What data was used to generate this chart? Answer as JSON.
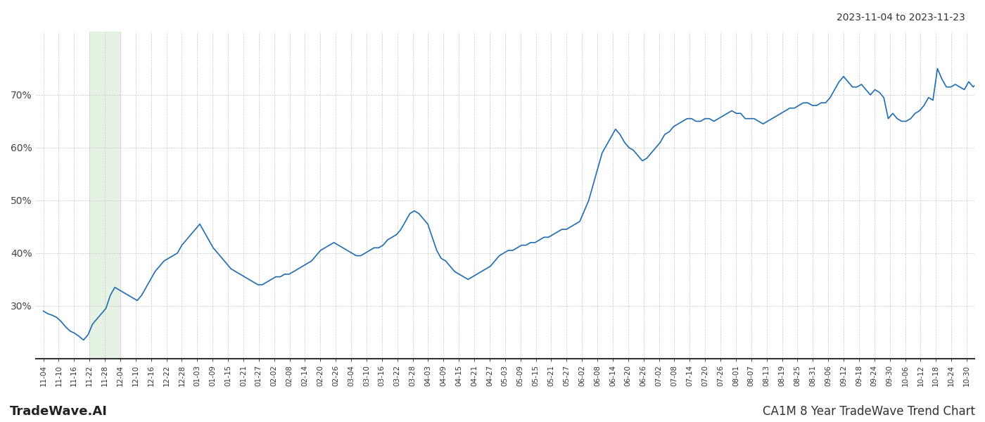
{
  "title_right": "2023-11-04 to 2023-11-23",
  "footer_left": "TradeWave.AI",
  "footer_right": "CA1M 8 Year TradeWave Trend Chart",
  "background_color": "#ffffff",
  "line_color": "#1f6cb0",
  "line_width": 1.2,
  "grid_color": "#c8c8c8",
  "shade_color": "#d6ecd2",
  "shade_alpha": 0.6,
  "ylim": [
    20,
    82
  ],
  "yticks": [
    30,
    40,
    50,
    60,
    70
  ],
  "xtick_labels": [
    "11-04",
    "11-10",
    "11-16",
    "11-22",
    "11-28",
    "12-04",
    "12-10",
    "12-16",
    "12-22",
    "12-28",
    "01-03",
    "01-09",
    "01-15",
    "01-21",
    "01-27",
    "02-02",
    "02-08",
    "02-14",
    "02-20",
    "02-26",
    "03-04",
    "03-10",
    "03-16",
    "03-22",
    "03-28",
    "04-03",
    "04-09",
    "04-15",
    "04-21",
    "04-27",
    "05-03",
    "05-09",
    "05-15",
    "05-21",
    "05-27",
    "06-02",
    "06-08",
    "06-14",
    "06-20",
    "06-26",
    "07-02",
    "07-08",
    "07-14",
    "07-20",
    "07-26",
    "08-01",
    "08-07",
    "08-13",
    "08-19",
    "08-25",
    "08-31",
    "09-06",
    "09-12",
    "09-18",
    "09-24",
    "09-30",
    "10-06",
    "10-12",
    "10-18",
    "10-24",
    "10-30"
  ],
  "values": [
    29.0,
    28.5,
    28.2,
    27.8,
    27.0,
    26.0,
    25.2,
    24.8,
    24.2,
    23.5,
    24.5,
    26.5,
    27.5,
    28.5,
    29.5,
    32.0,
    33.5,
    33.0,
    32.5,
    32.0,
    31.5,
    31.0,
    32.0,
    33.5,
    35.0,
    36.5,
    37.5,
    38.5,
    39.0,
    39.5,
    40.0,
    41.5,
    42.5,
    43.5,
    44.5,
    45.5,
    44.0,
    42.5,
    41.0,
    40.0,
    39.0,
    38.0,
    37.0,
    36.5,
    36.0,
    35.5,
    35.0,
    34.5,
    34.0,
    34.0,
    34.5,
    35.0,
    35.5,
    35.5,
    36.0,
    36.0,
    36.5,
    37.0,
    37.5,
    38.0,
    38.5,
    39.5,
    40.5,
    41.0,
    41.5,
    42.0,
    41.5,
    41.0,
    40.5,
    40.0,
    39.5,
    39.5,
    40.0,
    40.5,
    41.0,
    41.0,
    41.5,
    42.5,
    43.0,
    43.5,
    44.5,
    46.0,
    47.5,
    48.0,
    47.5,
    46.5,
    45.5,
    43.0,
    40.5,
    39.0,
    38.5,
    37.5,
    36.5,
    36.0,
    35.5,
    35.0,
    35.5,
    36.0,
    36.5,
    37.0,
    37.5,
    38.5,
    39.5,
    40.0,
    40.5,
    40.5,
    41.0,
    41.5,
    41.5,
    42.0,
    42.0,
    42.5,
    43.0,
    43.0,
    43.5,
    44.0,
    44.5,
    44.5,
    45.0,
    45.5,
    46.0,
    48.0,
    50.0,
    53.0,
    56.0,
    59.0,
    60.5,
    62.0,
    63.5,
    62.5,
    61.0,
    60.0,
    59.5,
    58.5,
    57.5,
    58.0,
    59.0,
    60.0,
    61.0,
    62.5,
    63.0,
    64.0,
    64.5,
    65.0,
    65.5,
    65.5,
    65.0,
    65.0,
    65.5,
    65.5,
    65.0,
    65.5,
    66.0,
    66.5,
    67.0,
    66.5,
    66.5,
    65.5,
    65.5,
    65.5,
    65.0,
    64.5,
    65.0,
    65.5,
    66.0,
    66.5,
    67.0,
    67.5,
    67.5,
    68.0,
    68.5,
    68.5,
    68.0,
    68.0,
    68.5,
    68.5,
    69.5,
    71.0,
    72.5,
    73.5,
    72.5,
    71.5,
    71.5,
    72.0,
    71.0,
    70.0,
    71.0,
    70.5,
    69.5,
    65.5,
    66.5,
    65.5,
    65.0,
    65.0,
    65.5,
    66.5,
    67.0,
    68.0,
    69.5,
    69.0,
    75.0,
    73.0,
    71.5,
    71.5,
    72.0,
    71.5,
    71.0,
    72.5,
    71.5,
    72.5
  ],
  "shade_label_start": "11-22",
  "shade_label_end": "11-28"
}
